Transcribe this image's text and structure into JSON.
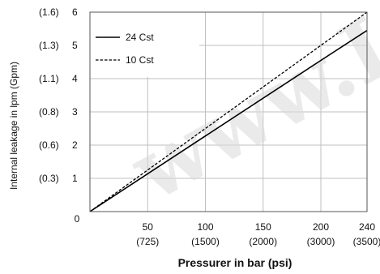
{
  "chart_data": {
    "type": "line",
    "title": "",
    "xlabel": "Pressurer in bar (psi)",
    "ylabel": "Internal leakage in lpm (Gpm)",
    "xlim": [
      0,
      240
    ],
    "ylim": [
      0,
      6
    ],
    "grid": true,
    "legend_position": "top-left",
    "x_ticks": [
      {
        "value": 0,
        "label": "0",
        "sublabel": ""
      },
      {
        "value": 50,
        "label": "50",
        "sublabel": "(725)"
      },
      {
        "value": 100,
        "label": "100",
        "sublabel": "(1500)"
      },
      {
        "value": 150,
        "label": "150",
        "sublabel": "(2000)"
      },
      {
        "value": 200,
        "label": "200",
        "sublabel": "(3000)"
      },
      {
        "value": 240,
        "label": "240",
        "sublabel": "(3500)"
      }
    ],
    "y_ticks": [
      {
        "value": 1,
        "label": "1",
        "sublabel": "(0.3)"
      },
      {
        "value": 2,
        "label": "2",
        "sublabel": "(0.6)"
      },
      {
        "value": 3,
        "label": "3",
        "sublabel": "(0.8)"
      },
      {
        "value": 4,
        "label": "4",
        "sublabel": "(1.1)"
      },
      {
        "value": 5,
        "label": "5",
        "sublabel": "(1.3)"
      },
      {
        "value": 6,
        "label": "6",
        "sublabel": "(1.6)"
      }
    ],
    "series": [
      {
        "name": "24 Cst",
        "style": "solid",
        "x": [
          0,
          200,
          240
        ],
        "y": [
          0,
          4.55,
          5.45
        ]
      },
      {
        "name": "10 Cst",
        "style": "dashed",
        "x": [
          0,
          240
        ],
        "y": [
          0,
          6.0
        ]
      }
    ]
  },
  "watermark": "www.L",
  "colors": {
    "line": "#000000",
    "grid": "#bfbfbf",
    "axis": "#555555",
    "watermark": "#d9d9d9"
  }
}
